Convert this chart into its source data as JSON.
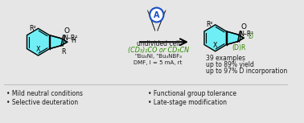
{
  "bg_color": "#e6e6e6",
  "text_color": "#1a1a1a",
  "green_color": "#2e8b00",
  "blue_color": "#1a4fc4",
  "lightning_yellow": "#f0c000",
  "lightning_gray": "#909090",
  "cyan_fill": "#70eef5",
  "cyan_edge": "#000000",
  "line_color": "#000000",
  "reaction_conditions_line1": "undivided cell",
  "reaction_conditions_line2": "(CD₃)₂CO or CD₃CN",
  "reaction_conditions_line3": "ⁿBu₄NI, ⁿBu₄NBF₄",
  "reaction_conditions_line4": "DMF, I = 5 mA, rt",
  "results_line1": "39 examples",
  "results_line2": "up to 89% yield",
  "results_line3": "up to 97% D incorporation",
  "bullet1_left": "Mild neutral conditions",
  "bullet2_left": "Selective deuteration",
  "bullet1_right": "Functional group tolerance",
  "bullet2_right": "Late-stage modification"
}
